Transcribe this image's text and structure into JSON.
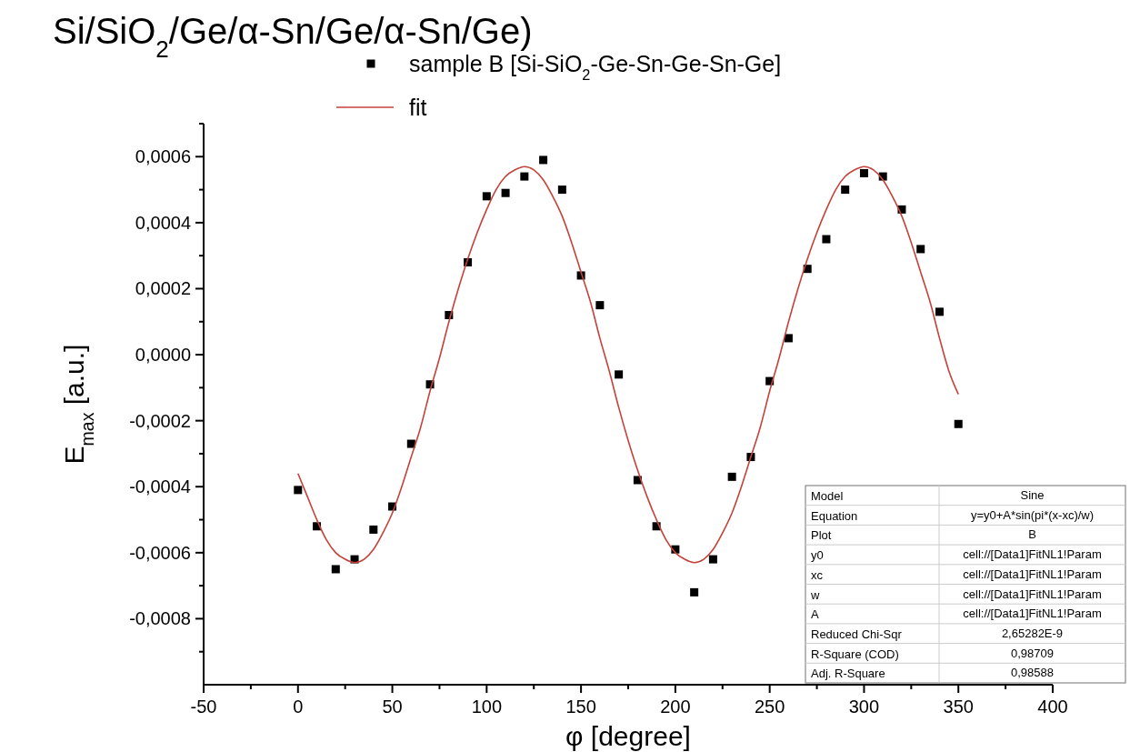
{
  "chart_data": {
    "type": "scatter",
    "title": "Si/SiO$_{2}$/Ge/α-Sn/Ge/α-Sn/Ge)",
    "xlabel": "φ [degree]",
    "ylabel": "E$_{max}$ [a.u.]",
    "xlim": [
      -50,
      400
    ],
    "xticks": [
      -50,
      {
        "value": -25,
        "label": null
      },
      0,
      {
        "value": 25,
        "label": null
      },
      50,
      {
        "value": 75,
        "label": null
      },
      100,
      {
        "value": 125,
        "label": null
      },
      150,
      {
        "value": 175,
        "label": null
      },
      200,
      {
        "value": 225,
        "label": null
      },
      250,
      {
        "value": 275,
        "label": null
      },
      300,
      {
        "value": 325,
        "label": null
      },
      350,
      {
        "value": 375,
        "label": null
      },
      400
    ],
    "ylim": [
      -0.001,
      0.0007
    ],
    "yticks": [
      {
        "value": -0.0009,
        "label": null
      },
      {
        "value": -0.0008,
        "label": "-0,0008"
      },
      {
        "value": -0.0007,
        "label": null
      },
      {
        "value": -0.0006,
        "label": "-0,0006"
      },
      {
        "value": -0.0005,
        "label": null
      },
      {
        "value": -0.0004,
        "label": "-0,0004"
      },
      {
        "value": -0.0003,
        "label": null
      },
      {
        "value": -0.0002,
        "label": "-0,0002"
      },
      {
        "value": -0.0001,
        "label": null
      },
      {
        "value": 0,
        "label": "0,0000"
      },
      {
        "value": 0.0001,
        "label": null
      },
      {
        "value": 0.0002,
        "label": "0,0002"
      },
      {
        "value": 0.0003,
        "label": null
      },
      {
        "value": 0.0004,
        "label": "0,0004"
      },
      {
        "value": 0.0005,
        "label": null
      },
      {
        "value": 0.0006,
        "label": "0,0006"
      },
      {
        "value": 0.0007,
        "label": null
      }
    ],
    "legend": "top",
    "series": [
      {
        "name": "sample B [Si-SiO$_{2}$-Ge-Sn-Ge-Sn-Ge]",
        "marker": "square",
        "color": "#000000",
        "x": [
          0,
          10,
          20,
          30,
          40,
          50,
          60,
          70,
          80,
          90,
          100,
          110,
          120,
          130,
          140,
          150,
          160,
          170,
          180,
          190,
          200,
          210,
          220,
          230,
          240,
          250,
          260,
          270,
          280,
          290,
          300,
          310,
          320,
          330,
          340,
          350
        ],
        "values": [
          -0.00041,
          -0.00052,
          -0.00065,
          -0.00062,
          -0.00053,
          -0.00046,
          -0.00027,
          -9e-05,
          0.00012,
          0.00028,
          0.00048,
          0.00049,
          0.00054,
          0.00059,
          0.0005,
          0.00024,
          0.00015,
          -6e-05,
          -0.00038,
          -0.00052,
          -0.00059,
          -0.00072,
          -0.00062,
          -0.00037,
          -0.00031,
          -8e-05,
          5e-05,
          0.00026,
          0.00035,
          0.0005,
          0.00055,
          0.00054,
          0.00044,
          0.00032,
          0.00013,
          -0.00021
        ]
      },
      {
        "name": "fit",
        "type": "line",
        "color": "#c4423a",
        "x": [
          0,
          5,
          10,
          15,
          20,
          25,
          30,
          35,
          40,
          45,
          50,
          55,
          60,
          65,
          70,
          75,
          80,
          85,
          90,
          95,
          100,
          105,
          110,
          115,
          120,
          125,
          130,
          135,
          140,
          145,
          150,
          155,
          160,
          165,
          170,
          175,
          180,
          185,
          190,
          195,
          200,
          205,
          210,
          215,
          220,
          225,
          230,
          235,
          240,
          245,
          250,
          255,
          260,
          265,
          270,
          275,
          280,
          285,
          290,
          295,
          300,
          305,
          310,
          315,
          320,
          325,
          330,
          335,
          340,
          345,
          350
        ],
        "values": [
          -0.00036,
          -0.00043,
          -0.0005,
          -0.00056,
          -0.0006,
          -0.00062,
          -0.00063,
          -0.00062,
          -0.00059,
          -0.00054,
          -0.00048,
          -0.0004,
          -0.00031,
          -0.00022,
          -0.00011,
          -1e-05,
          0.0001,
          0.0002,
          0.00029,
          0.00037,
          0.00044,
          0.0005,
          0.00054,
          0.00056,
          0.00057,
          0.00056,
          0.00053,
          0.00048,
          0.00042,
          0.00034,
          0.00025,
          0.00016,
          5e-05,
          -5e-05,
          -0.00016,
          -0.00026,
          -0.00035,
          -0.00043,
          -0.0005,
          -0.00056,
          -0.0006,
          -0.00062,
          -0.00063,
          -0.00062,
          -0.00059,
          -0.00054,
          -0.00048,
          -0.0004,
          -0.00031,
          -0.00022,
          -0.00011,
          -1e-05,
          0.0001,
          0.0002,
          0.00029,
          0.00037,
          0.00044,
          0.0005,
          0.00054,
          0.00056,
          0.00057,
          0.00056,
          0.00053,
          0.00048,
          0.00042,
          0.00034,
          0.00025,
          0.00016,
          5e-05,
          -5e-05,
          -0.00012
        ]
      }
    ],
    "annotations": [
      "Model",
      "Sine",
      "Equation",
      "y=y0+A*sin(pi*(x-xc)/w)",
      "Plot",
      "B",
      "y0",
      "cell://[Data1]FitNL1!Param",
      "xc",
      "cell://[Data1]FitNL1!Param",
      "w",
      "cell://[Data1]FitNL1!Param",
      "A",
      "cell://[Data1]FitNL1!Param",
      "Reduced Chi-Sqr",
      "2,65282E-9",
      "R-Square (COD)",
      "0,98709",
      "Adj. R-Square",
      "0,98588"
    ]
  }
}
